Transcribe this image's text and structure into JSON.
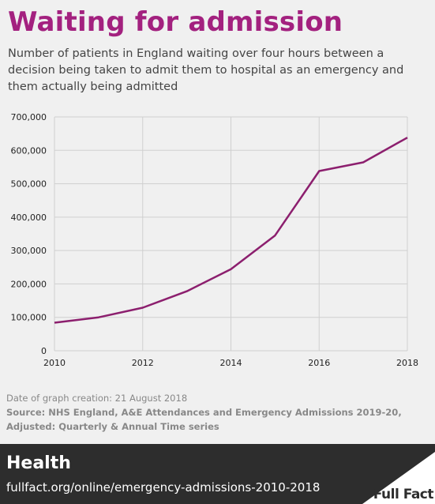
{
  "header": {
    "title": "Waiting for admission",
    "subtitle": "Number of patients in England waiting over four hours between a decision being taken to admit them to hospital as an emergency and them actually being admitted"
  },
  "chart_data": {
    "type": "line",
    "x": [
      2010,
      2011,
      2012,
      2013,
      2014,
      2015,
      2016,
      2017,
      2018
    ],
    "series": [
      {
        "values": [
          84000,
          100000,
          129000,
          178000,
          244000,
          345000,
          538000,
          564000,
          638000
        ]
      }
    ],
    "xticks": [
      "2010",
      "2012",
      "2014",
      "2016",
      "2018"
    ],
    "yticks": [
      "0",
      "100,000",
      "200,000",
      "300,000",
      "400,000",
      "500,000",
      "600,000",
      "700,000"
    ],
    "xlim": [
      2010,
      2018
    ],
    "ylim": [
      0,
      700000
    ],
    "grid": true,
    "color": "#8c1f6e"
  },
  "meta": {
    "date_line": "Date of graph creation: 21 August 2018",
    "source_line": "Source: NHS England, A&E Attendances and Emergency Admissions 2019-20, Adjusted: Quarterly & Annual Time series"
  },
  "footer": {
    "category": "Health",
    "url": "fullfact.org/online/emergency-admissions-2010-2018",
    "logo_text": "Full Fact"
  }
}
